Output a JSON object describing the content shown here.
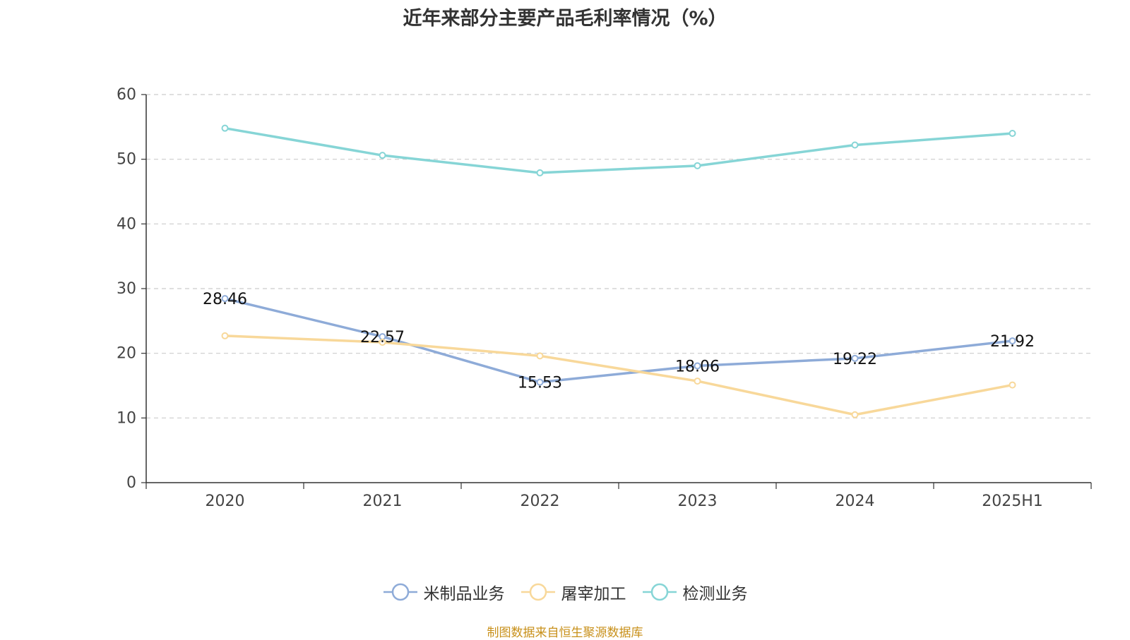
{
  "chart_data": {
    "type": "line",
    "title": "近年来部分主要产品毛利率情况（%）",
    "categories": [
      "2020",
      "2021",
      "2022",
      "2023",
      "2024",
      "2025H1"
    ],
    "ylim": [
      0,
      60
    ],
    "yticks": [
      0,
      10,
      20,
      30,
      40,
      50,
      60
    ],
    "grid": true,
    "legend_position": "bottom",
    "series": [
      {
        "name": "米制品业务",
        "color": "#8eabd8",
        "values": [
          28.46,
          22.57,
          15.53,
          18.06,
          19.22,
          21.92
        ],
        "data_labels": [
          "28.46",
          "22.57",
          "15.53",
          "18.06",
          "19.22",
          "21.92"
        ]
      },
      {
        "name": "屠宰加工",
        "color": "#f8d89a",
        "values": [
          22.7,
          21.7,
          19.6,
          15.7,
          10.5,
          15.1
        ]
      },
      {
        "name": "检测业务",
        "color": "#86d5d6",
        "values": [
          54.8,
          50.6,
          47.9,
          49.0,
          52.2,
          54.0
        ]
      }
    ]
  },
  "source_note": "制图数据来自恒生聚源数据库"
}
